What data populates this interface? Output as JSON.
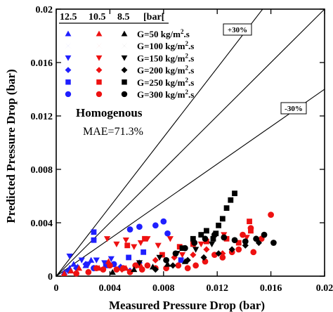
{
  "chart_data": {
    "type": "scatter",
    "xlabel": "Measured Pressure Drop (bar)",
    "ylabel": "Predicted Pressure Drop (bar)",
    "xlim": [
      0,
      0.02
    ],
    "ylim": [
      0,
      0.02
    ],
    "xticks": [
      0,
      0.004,
      0.008,
      0.012,
      0.016,
      0.02
    ],
    "yticks": [
      0,
      0.004,
      0.008,
      0.012,
      0.016,
      0.02
    ],
    "xtick_labels": [
      "0",
      "0.004",
      "0.008",
      "0.012",
      "0.016",
      "0.02"
    ],
    "ytick_labels": [
      "0",
      "0.004",
      "0.008",
      "0.012",
      "0.016",
      "0.02"
    ],
    "grid": false,
    "legend": {
      "placement": "top-left",
      "headers": [
        "12.5",
        "10.5",
        "8.5",
        "[bar["
      ],
      "pressure_colors": {
        "12.5": "#1f1fff",
        "10.5": "#ee1111",
        "8.5": "#000000"
      },
      "entries": [
        {
          "label": "G=50 kg/m",
          "sup": "2",
          "suffix": ".s",
          "marker": "triangle-up"
        },
        {
          "label": "G=100 kg/m",
          "sup": "2",
          "suffix": ".s",
          "marker": "bowtie"
        },
        {
          "label": "G=150 kg/m",
          "sup": "2",
          "suffix": ".s",
          "marker": "triangle-down"
        },
        {
          "label": "G=200 kg/m",
          "sup": "2",
          "suffix": ".s",
          "marker": "diamond"
        },
        {
          "label": "G=250 kg/m",
          "sup": "2",
          "suffix": ".s",
          "marker": "square"
        },
        {
          "label": "G=300 kg/m",
          "sup": "2",
          "suffix": ".s",
          "marker": "circle"
        }
      ]
    },
    "annotations": {
      "model": "Homogenous",
      "mae": "MAE=71.3%",
      "upper_band": "+30%",
      "lower_band": "-30%"
    },
    "reference_lines": [
      {
        "name": "+30%",
        "slope": 1.3
      },
      {
        "name": "-30%",
        "slope": 0.7
      },
      {
        "name": "parity",
        "slope": 1.0
      }
    ],
    "series": [
      {
        "pressure": "12.5",
        "marker": "triangle-up",
        "color": "#1f1fff",
        "points": [
          [
            0.0006,
            0.0003
          ],
          [
            0.001,
            0.0006
          ],
          [
            0.0013,
            0.0009
          ],
          [
            0.0016,
            0.0007
          ],
          [
            0.0022,
            0.0008
          ],
          [
            0.0026,
            0.0012
          ]
        ]
      },
      {
        "pressure": "12.5",
        "marker": "bowtie",
        "color": "#1f1fff",
        "points": [
          [
            0.0008,
            0.0004
          ],
          [
            0.0013,
            0.0006
          ],
          [
            0.002,
            0.0009
          ],
          [
            0.0024,
            0.0006
          ],
          [
            0.0029,
            0.0008
          ],
          [
            0.0035,
            0.0009
          ],
          [
            0.004,
            0.0004
          ]
        ]
      },
      {
        "pressure": "12.5",
        "marker": "triangle-down",
        "color": "#1f1fff",
        "points": [
          [
            0.001,
            0.0015
          ],
          [
            0.0019,
            0.0012
          ],
          [
            0.0024,
            0.0009
          ],
          [
            0.003,
            0.0012
          ],
          [
            0.0036,
            0.001
          ],
          [
            0.0041,
            0.0013
          ]
        ]
      },
      {
        "pressure": "12.5",
        "marker": "diamond",
        "color": "#1f1fff",
        "points": [
          [
            0.0009,
            0.0004
          ],
          [
            0.0015,
            0.0006
          ],
          [
            0.0022,
            0.0009
          ],
          [
            0.0028,
            0.0006
          ],
          [
            0.0048,
            0.0007
          ],
          [
            0.0055,
            0.0004
          ],
          [
            0.0062,
            0.001
          ]
        ]
      },
      {
        "pressure": "12.5",
        "marker": "square",
        "color": "#1f1fff",
        "points": [
          [
            0.0028,
            0.0033
          ],
          [
            0.0028,
            0.0027
          ],
          [
            0.0037,
            0.0008
          ],
          [
            0.0054,
            0.0014
          ],
          [
            0.0065,
            0.0018
          ],
          [
            0.0093,
            0.0012
          ]
        ]
      },
      {
        "pressure": "12.5",
        "marker": "circle",
        "color": "#1f1fff",
        "points": [
          [
            0.0028,
            0.0006
          ],
          [
            0.0043,
            0.0009
          ],
          [
            0.0055,
            0.0035
          ],
          [
            0.0062,
            0.0037
          ],
          [
            0.0074,
            0.0038
          ],
          [
            0.008,
            0.0041
          ],
          [
            0.0083,
            0.0032
          ]
        ]
      },
      {
        "pressure": "10.5",
        "marker": "triangle-up",
        "color": "#ee1111",
        "points": [
          [
            0.0006,
            0.0002
          ],
          [
            0.0011,
            0.0004
          ],
          [
            0.0017,
            0.0006
          ],
          [
            0.0032,
            0.0006
          ],
          [
            0.0039,
            0.0011
          ],
          [
            0.0052,
            0.0006
          ],
          [
            0.0063,
            0.0008
          ]
        ]
      },
      {
        "pressure": "10.5",
        "marker": "bowtie",
        "color": "#ee1111",
        "points": [
          [
            0.0015,
            0.0003
          ],
          [
            0.0026,
            0.0004
          ],
          [
            0.0035,
            0.0006
          ],
          [
            0.0044,
            0.0008
          ],
          [
            0.0057,
            0.0012
          ],
          [
            0.0063,
            0.0009
          ],
          [
            0.0072,
            0.0013
          ]
        ]
      },
      {
        "pressure": "10.5",
        "marker": "triangle-down",
        "color": "#ee1111",
        "points": [
          [
            0.0038,
            0.0028
          ],
          [
            0.0045,
            0.0024
          ],
          [
            0.0052,
            0.0027
          ],
          [
            0.0058,
            0.0022
          ],
          [
            0.0063,
            0.0025
          ],
          [
            0.0068,
            0.0028
          ],
          [
            0.0076,
            0.0023
          ],
          [
            0.0085,
            0.0028
          ],
          [
            0.0094,
            0.0016
          ],
          [
            0.0108,
            0.0024
          ],
          [
            0.0125,
            0.0031
          ],
          [
            0.0142,
            0.0029
          ]
        ]
      },
      {
        "pressure": "10.5",
        "marker": "diamond",
        "color": "#ee1111",
        "points": [
          [
            0.0049,
            0.0005
          ],
          [
            0.006,
            0.0008
          ],
          [
            0.0074,
            0.0012
          ],
          [
            0.0088,
            0.0014
          ],
          [
            0.0102,
            0.0016
          ],
          [
            0.0112,
            0.002
          ],
          [
            0.0124,
            0.0017
          ]
        ]
      },
      {
        "pressure": "10.5",
        "marker": "square",
        "color": "#ee1111",
        "points": [
          [
            0.0053,
            0.0023
          ],
          [
            0.0066,
            0.0028
          ],
          [
            0.0079,
            0.0016
          ],
          [
            0.0092,
            0.0022
          ],
          [
            0.0102,
            0.0024
          ],
          [
            0.0112,
            0.0026
          ],
          [
            0.0127,
            0.0028
          ],
          [
            0.0136,
            0.0025
          ],
          [
            0.0145,
            0.0034
          ],
          [
            0.0144,
            0.0041
          ]
        ]
      },
      {
        "pressure": "10.5",
        "marker": "circle",
        "color": "#ee1111",
        "points": [
          [
            0.0015,
            0.0002
          ],
          [
            0.0024,
            0.0003
          ],
          [
            0.003,
            0.0006
          ],
          [
            0.0035,
            0.0005
          ],
          [
            0.004,
            0.0008
          ],
          [
            0.0045,
            0.0005
          ],
          [
            0.005,
            0.0006
          ],
          [
            0.0055,
            0.0003
          ],
          [
            0.0059,
            0.0008
          ],
          [
            0.0064,
            0.0005
          ],
          [
            0.0068,
            0.0008
          ],
          [
            0.0074,
            0.0006
          ],
          [
            0.0082,
            0.0006
          ],
          [
            0.0091,
            0.0008
          ],
          [
            0.0098,
            0.0006
          ],
          [
            0.0104,
            0.0008
          ],
          [
            0.0111,
            0.0011
          ],
          [
            0.0118,
            0.0016
          ],
          [
            0.0124,
            0.0014
          ],
          [
            0.0131,
            0.0018
          ],
          [
            0.0136,
            0.002
          ],
          [
            0.0147,
            0.0018
          ],
          [
            0.0153,
            0.0028
          ],
          [
            0.016,
            0.0046
          ],
          [
            0.0145,
            0.0036
          ],
          [
            0.0139,
            0.0031
          ]
        ]
      },
      {
        "pressure": "8.5",
        "marker": "triangle-up",
        "color": "#000000",
        "points": [
          [
            0.0042,
            0.0003
          ],
          [
            0.0058,
            0.0005
          ],
          [
            0.0072,
            0.0007
          ],
          [
            0.0083,
            0.0009
          ],
          [
            0.0096,
            0.0011
          ]
        ]
      },
      {
        "pressure": "8.5",
        "marker": "bowtie",
        "color": "#000000",
        "points": [
          [
            0.0052,
            0.0006
          ],
          [
            0.0067,
            0.0008
          ],
          [
            0.008,
            0.0009
          ],
          [
            0.0092,
            0.0012
          ],
          [
            0.0106,
            0.0015
          ]
        ]
      },
      {
        "pressure": "8.5",
        "marker": "triangle-down",
        "color": "#000000",
        "points": [
          [
            0.0062,
            0.001
          ],
          [
            0.0077,
            0.0014
          ],
          [
            0.009,
            0.0017
          ],
          [
            0.0104,
            0.002
          ],
          [
            0.0116,
            0.0024
          ]
        ]
      },
      {
        "pressure": "8.5",
        "marker": "diamond",
        "color": "#000000",
        "points": [
          [
            0.0074,
            0.0005
          ],
          [
            0.0087,
            0.0008
          ],
          [
            0.0098,
            0.0012
          ],
          [
            0.011,
            0.0014
          ],
          [
            0.0121,
            0.0017
          ],
          [
            0.0131,
            0.002
          ],
          [
            0.0141,
            0.0023
          ],
          [
            0.0151,
            0.0025
          ]
        ]
      },
      {
        "pressure": "8.5",
        "marker": "square",
        "color": "#000000",
        "points": [
          [
            0.0094,
            0.0021
          ],
          [
            0.0102,
            0.0028
          ],
          [
            0.0108,
            0.0031
          ],
          [
            0.0112,
            0.0034
          ],
          [
            0.0117,
            0.0028
          ],
          [
            0.0121,
            0.0038
          ],
          [
            0.0124,
            0.0043
          ],
          [
            0.0127,
            0.0051
          ],
          [
            0.013,
            0.0057
          ],
          [
            0.0133,
            0.0062
          ],
          [
            0.0119,
            0.0032
          ]
        ]
      },
      {
        "pressure": "8.5",
        "marker": "circle",
        "color": "#000000",
        "points": [
          [
            0.0082,
            0.0012
          ],
          [
            0.0089,
            0.0017
          ],
          [
            0.0096,
            0.0021
          ],
          [
            0.0103,
            0.0025
          ],
          [
            0.0111,
            0.0028
          ],
          [
            0.0118,
            0.0031
          ],
          [
            0.0125,
            0.0029
          ],
          [
            0.0133,
            0.0027
          ],
          [
            0.0141,
            0.0026
          ],
          [
            0.0149,
            0.0028
          ],
          [
            0.0155,
            0.0031
          ],
          [
            0.0162,
            0.0025
          ]
        ]
      }
    ]
  }
}
